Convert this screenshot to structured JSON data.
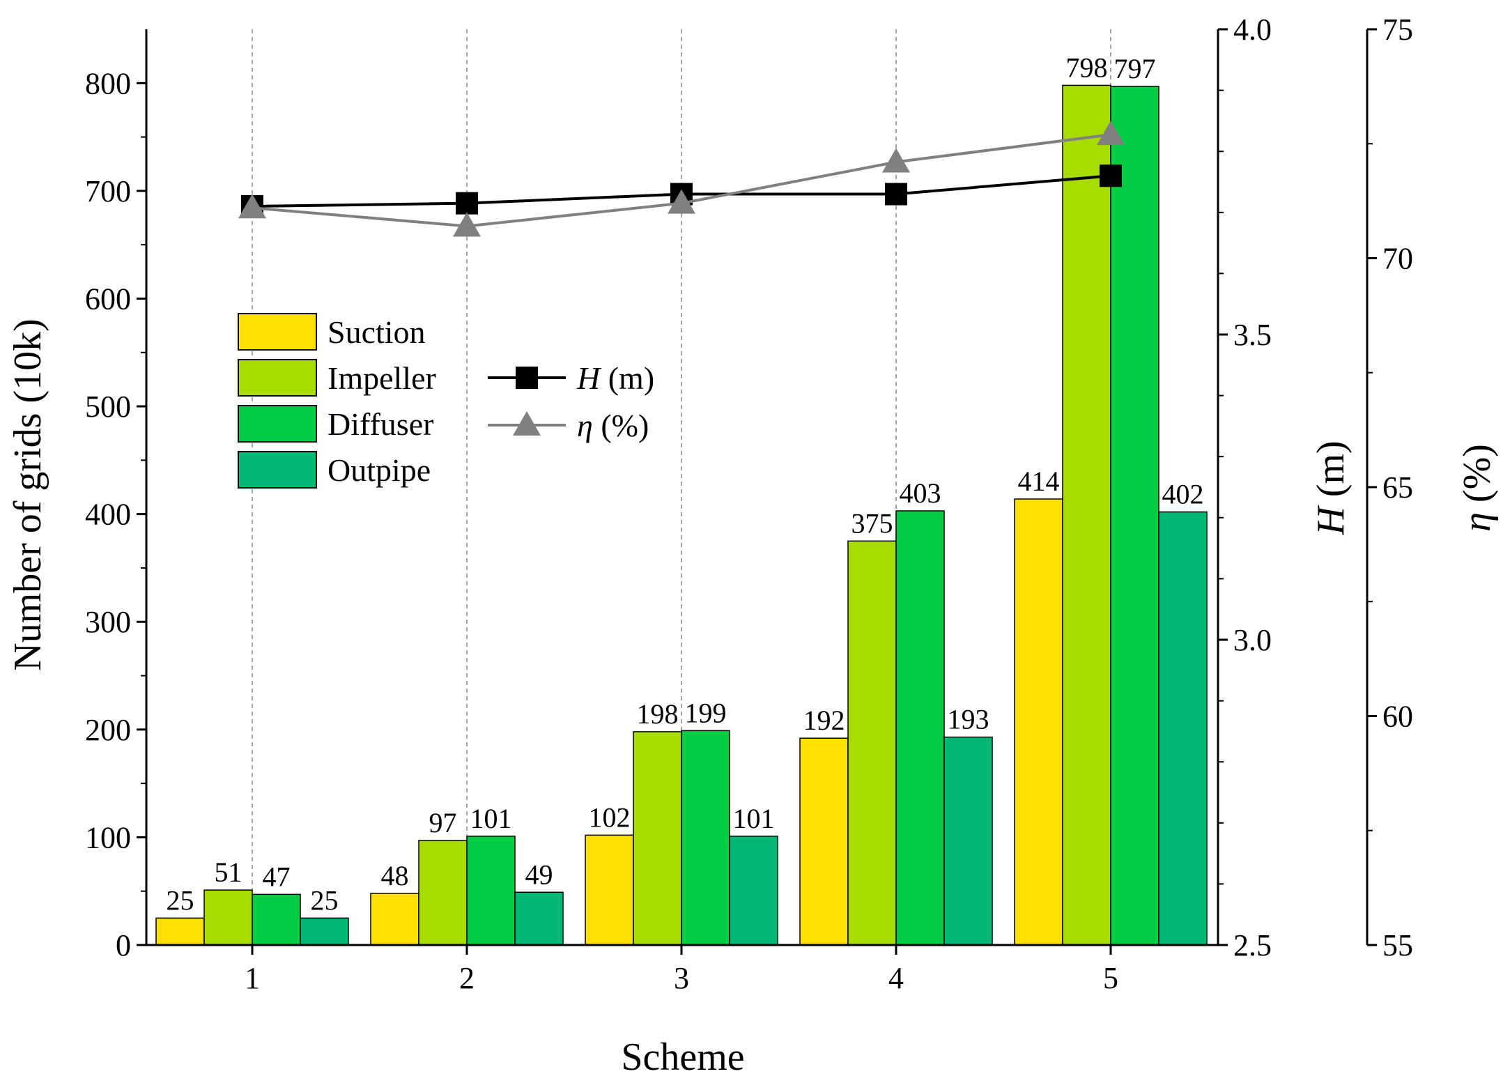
{
  "chart_data": {
    "type": "bar",
    "categories": [
      "1",
      "2",
      "3",
      "4",
      "5"
    ],
    "xlabel": "Scheme",
    "ylabel": "Number of grids (10k)",
    "ylim": [
      0,
      850
    ],
    "yticks": [
      "0",
      "100",
      "200",
      "300",
      "400",
      "500",
      "600",
      "700",
      "800"
    ],
    "series": [
      {
        "name": "Suction",
        "color": "#FFE000",
        "values": [
          25,
          48,
          102,
          192,
          414
        ],
        "labels": [
          "25",
          "48",
          "102",
          "192",
          "414"
        ]
      },
      {
        "name": "Impeller",
        "color": "#A6DC00",
        "values": [
          51,
          97,
          198,
          375,
          798
        ],
        "labels": [
          "51",
          "97",
          "198",
          "375",
          "798"
        ]
      },
      {
        "name": "Diffuser",
        "color": "#00CC44",
        "values": [
          47,
          101,
          199,
          403,
          797
        ],
        "labels": [
          "47",
          "101",
          "199",
          "403",
          "797"
        ]
      },
      {
        "name": "Outpipe",
        "color": "#00B874",
        "values": [
          25,
          49,
          101,
          193,
          402
        ],
        "labels": [
          "25",
          "49",
          "101",
          "193",
          "402"
        ]
      }
    ],
    "line_series": [
      {
        "name_symbol": "H",
        "name_unit": " (m)",
        "axis": "H",
        "marker": "square",
        "color": "#000000",
        "values": [
          3.71,
          3.715,
          3.73,
          3.73,
          3.76
        ]
      },
      {
        "name_symbol": "η",
        "name_unit": " (%)",
        "axis": "eta",
        "marker": "triangle",
        "color": "#808080",
        "values": [
          71.1,
          70.7,
          71.2,
          72.1,
          72.7
        ]
      }
    ],
    "axis_H": {
      "title_symbol": "H",
      "title_unit": " (m)",
      "range": [
        2.5,
        4.0
      ],
      "ticks": [
        "2.5",
        "3.0",
        "3.5",
        "4.0"
      ]
    },
    "axis_eta": {
      "title_symbol": "η",
      "title_unit": " (%)",
      "range": [
        55,
        75
      ],
      "ticks": [
        "55",
        "60",
        "65",
        "70",
        "75"
      ]
    },
    "grid": "vertical dashed at each scheme",
    "legend_position": "upper-left"
  }
}
